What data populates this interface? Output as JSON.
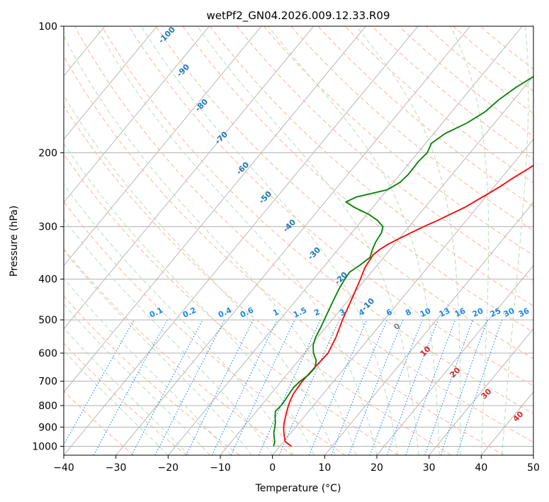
{
  "chart_data": {
    "type": "line",
    "title": "wetPf2_GN04.2026.009.12.33.R09",
    "xlabel": "Temperature (°C)",
    "ylabel": "Pressure (hPa)",
    "xlim": [
      -40,
      50
    ],
    "ylim": [
      1050,
      100
    ],
    "y_scale": "log",
    "grid": true,
    "x_ticks": [
      -40,
      -30,
      -20,
      -10,
      0,
      10,
      20,
      30,
      40,
      50
    ],
    "y_ticks": [
      100,
      200,
      300,
      400,
      500,
      600,
      700,
      800,
      900,
      1000
    ],
    "series": [
      {
        "color": "#ff0000",
        "points": [
          [
            1000,
            2.2
          ],
          [
            975,
            0.3
          ],
          [
            950,
            -0.6
          ],
          [
            925,
            -1.5
          ],
          [
            900,
            -2.3
          ],
          [
            875,
            -3.0
          ],
          [
            850,
            -3.6
          ],
          [
            825,
            -4.2
          ],
          [
            800,
            -4.8
          ],
          [
            775,
            -5.3
          ],
          [
            750,
            -5.7
          ],
          [
            700,
            -6.0
          ],
          [
            650,
            -5.8
          ],
          [
            600,
            -5.5
          ],
          [
            550,
            -6.5
          ],
          [
            500,
            -8.0
          ],
          [
            450,
            -9.4
          ],
          [
            400,
            -11.0
          ],
          [
            375,
            -12.0
          ],
          [
            350,
            -12.4
          ],
          [
            340,
            -12.0
          ],
          [
            330,
            -11.2
          ],
          [
            320,
            -10.0
          ],
          [
            310,
            -8.6
          ],
          [
            300,
            -7.2
          ],
          [
            290,
            -5.5
          ],
          [
            280,
            -4.0
          ],
          [
            270,
            -2.4
          ],
          [
            260,
            -1.2
          ],
          [
            250,
            0.0
          ],
          [
            240,
            1.2
          ],
          [
            230,
            2.2
          ],
          [
            220,
            3.5
          ],
          [
            210,
            4.7
          ],
          [
            200,
            5.8
          ],
          [
            190,
            6.8
          ],
          [
            180,
            7.6
          ],
          [
            170,
            8.4
          ],
          [
            160,
            9.2
          ],
          [
            150,
            10.3
          ],
          [
            140,
            11.7
          ],
          [
            130,
            13.3
          ],
          [
            120,
            14.5
          ],
          [
            110,
            15.3
          ],
          [
            100,
            16.0
          ]
        ]
      },
      {
        "color": "#008000",
        "points": [
          [
            1000,
            -1.2
          ],
          [
            975,
            -1.7
          ],
          [
            950,
            -2.6
          ],
          [
            925,
            -3.4
          ],
          [
            900,
            -4.0
          ],
          [
            875,
            -4.7
          ],
          [
            850,
            -5.6
          ],
          [
            825,
            -6.4
          ],
          [
            800,
            -6.2
          ],
          [
            775,
            -6.3
          ],
          [
            750,
            -6.5
          ],
          [
            725,
            -6.7
          ],
          [
            700,
            -6.4
          ],
          [
            675,
            -5.8
          ],
          [
            650,
            -5.7
          ],
          [
            625,
            -6.6
          ],
          [
            600,
            -8.3
          ],
          [
            575,
            -9.6
          ],
          [
            550,
            -10.4
          ],
          [
            525,
            -10.9
          ],
          [
            500,
            -11.5
          ],
          [
            450,
            -12.8
          ],
          [
            420,
            -13.6
          ],
          [
            400,
            -14.0
          ],
          [
            385,
            -14.2
          ],
          [
            370,
            -13.3
          ],
          [
            355,
            -12.6
          ],
          [
            340,
            -13.4
          ],
          [
            325,
            -14.0
          ],
          [
            310,
            -14.3
          ],
          [
            300,
            -15.0
          ],
          [
            290,
            -17.0
          ],
          [
            280,
            -19.8
          ],
          [
            270,
            -23.5
          ],
          [
            262,
            -26.0
          ],
          [
            255,
            -24.8
          ],
          [
            245,
            -20.0
          ],
          [
            235,
            -18.7
          ],
          [
            225,
            -18.4
          ],
          [
            210,
            -18.5
          ],
          [
            200,
            -18.2
          ],
          [
            190,
            -18.9
          ],
          [
            180,
            -17.8
          ],
          [
            170,
            -15.3
          ],
          [
            160,
            -13.6
          ],
          [
            150,
            -12.9
          ],
          [
            140,
            -11.6
          ],
          [
            130,
            -9.5
          ],
          [
            120,
            -7.6
          ],
          [
            110,
            -5.5
          ],
          [
            100,
            -3.6
          ]
        ]
      }
    ],
    "dry_adiabat_labels": [
      "-100",
      "-90",
      "-80",
      "-70",
      "-60",
      "-50",
      "-40",
      "-30",
      "-20",
      "-10"
    ],
    "moist_adiabat_labels": [
      "0",
      "10",
      "20",
      "30",
      "40"
    ],
    "mixing_ratio_labels": [
      "0.1",
      "0.2",
      "0.4",
      "0.6",
      "1",
      "1.5",
      "2",
      "3",
      "4",
      "6",
      "8",
      "10",
      "13",
      "16",
      "20",
      "25",
      "30",
      "36"
    ],
    "colors": {
      "isotherm": "#b0b0b0",
      "dry_adiabat": "#f7b4a0",
      "moist_adiabat": "#b8dcb8",
      "mixing_ratio": "#1e88e5",
      "dry_label": "#1f77b4",
      "moist_label": "#d62728",
      "zero_label": "#7f7f7f",
      "temperature": "#ff0000",
      "dewpoint": "#008000"
    }
  }
}
